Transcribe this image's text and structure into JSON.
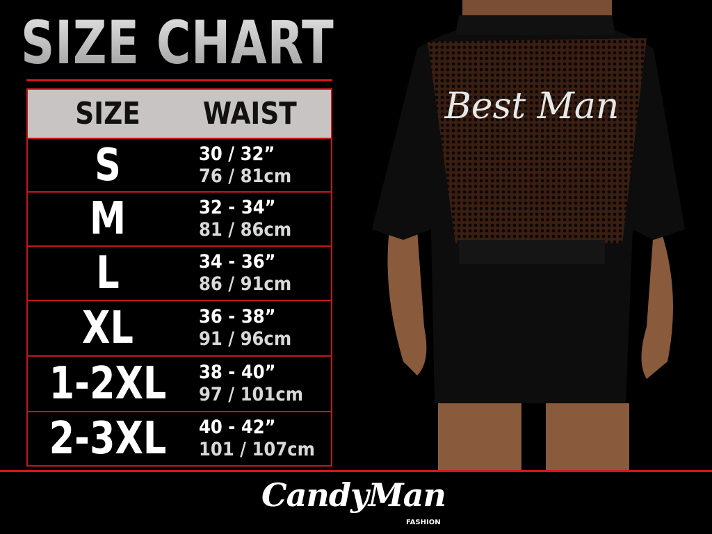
{
  "title": "SIZE CHART",
  "table": {
    "headers": {
      "size": "SIZE",
      "waist": "WAIST"
    },
    "rows": [
      {
        "size": "S",
        "inches": "30 / 32”",
        "cm": "76 / 81cm"
      },
      {
        "size": "M",
        "inches": "32 - 34”",
        "cm": "81 / 86cm"
      },
      {
        "size": "L",
        "inches": "34 - 36”",
        "cm": "86 / 91cm"
      },
      {
        "size": "XL",
        "inches": "36 - 38”",
        "cm": "91 / 96cm"
      },
      {
        "size": "1-2XL",
        "inches": "38 - 40”",
        "cm": "97 / 101cm"
      },
      {
        "size": "2-3XL",
        "inches": "40 - 42”",
        "cm": "101 / 107cm"
      }
    ]
  },
  "product_print": "Best Man",
  "brand": {
    "name": "CandyMan",
    "sub": "FASHION"
  },
  "colors": {
    "accent": "#d4161a",
    "header_bg": "#c9c4c4",
    "background": "#000000"
  }
}
